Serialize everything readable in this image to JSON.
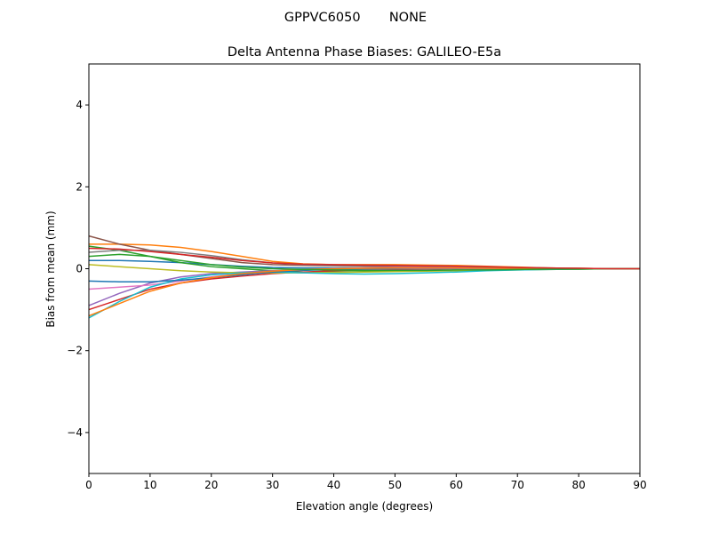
{
  "chart_data": {
    "type": "line",
    "suptitle": "GPPVC6050       NONE",
    "title": "Delta Antenna Phase Biases: GALILEO-E5a",
    "x_label": "Elevation angle (degrees)",
    "y_label": "Bias from mean (mm)",
    "xlim": [
      0,
      90
    ],
    "ylim": [
      -5,
      5
    ],
    "xticks": [
      0,
      10,
      20,
      30,
      40,
      50,
      60,
      70,
      80,
      90
    ],
    "yticks": [
      {
        "value": -4,
        "label": "−4"
      },
      {
        "value": -2,
        "label": "−2"
      },
      0,
      2,
      4
    ],
    "x": [
      0,
      5,
      10,
      15,
      20,
      25,
      30,
      35,
      40,
      45,
      50,
      55,
      60,
      65,
      70,
      75,
      80,
      85,
      90
    ],
    "series": [
      {
        "color": "#1f77b4",
        "values": [
          0.2,
          0.2,
          0.18,
          0.15,
          0.1,
          0.06,
          0.03,
          0.02,
          0.02,
          0.02,
          0.02,
          0.01,
          0.01,
          0.01,
          0.01,
          0,
          0,
          0,
          0
        ]
      },
      {
        "color": "#ff7f0e",
        "values": [
          0.6,
          0.6,
          0.58,
          0.52,
          0.42,
          0.3,
          0.18,
          0.12,
          0.1,
          0.1,
          0.1,
          0.09,
          0.08,
          0.06,
          0.04,
          0.02,
          0.01,
          0,
          0
        ]
      },
      {
        "color": "#2ca02c",
        "values": [
          0.55,
          0.45,
          0.3,
          0.15,
          0.05,
          0,
          -0.05,
          -0.08,
          -0.08,
          -0.07,
          -0.06,
          -0.05,
          -0.04,
          -0.03,
          -0.02,
          -0.01,
          0,
          0,
          0
        ]
      },
      {
        "color": "#d62728",
        "values": [
          -1.0,
          -0.75,
          -0.5,
          -0.35,
          -0.25,
          -0.18,
          -0.12,
          -0.08,
          -0.05,
          -0.03,
          -0.02,
          -0.01,
          0,
          0,
          0,
          0,
          0,
          0,
          0
        ]
      },
      {
        "color": "#9467bd",
        "values": [
          -0.9,
          -0.6,
          -0.35,
          -0.2,
          -0.12,
          -0.08,
          -0.05,
          -0.03,
          -0.02,
          -0.01,
          0,
          0,
          0,
          0,
          0,
          0,
          0,
          0,
          0
        ]
      },
      {
        "color": "#8c564b",
        "values": [
          0.8,
          0.6,
          0.45,
          0.35,
          0.25,
          0.15,
          0.1,
          0.08,
          0.07,
          0.06,
          0.05,
          0.05,
          0.04,
          0.03,
          0.02,
          0.01,
          0,
          0,
          0
        ]
      },
      {
        "color": "#e377c2",
        "values": [
          -0.5,
          -0.45,
          -0.4,
          -0.3,
          -0.2,
          -0.12,
          -0.06,
          -0.03,
          0,
          0.02,
          0.03,
          0.03,
          0.03,
          0.02,
          0.01,
          0.01,
          0,
          0,
          0
        ]
      },
      {
        "color": "#7f7f7f",
        "values": [
          0.4,
          0.45,
          0.45,
          0.4,
          0.32,
          0.22,
          0.14,
          0.1,
          0.08,
          0.08,
          0.07,
          0.07,
          0.06,
          0.05,
          0.03,
          0.02,
          0.01,
          0,
          0
        ]
      },
      {
        "color": "#bcbd22",
        "values": [
          0.1,
          0.05,
          0,
          -0.05,
          -0.08,
          -0.1,
          -0.1,
          -0.1,
          -0.09,
          -0.08,
          -0.07,
          -0.06,
          -0.05,
          -0.04,
          -0.03,
          -0.02,
          -0.01,
          0,
          0
        ]
      },
      {
        "color": "#17becf",
        "values": [
          -1.2,
          -0.8,
          -0.45,
          -0.25,
          -0.15,
          -0.1,
          -0.08,
          -0.1,
          -0.12,
          -0.13,
          -0.12,
          -0.1,
          -0.08,
          -0.05,
          -0.03,
          -0.02,
          -0.01,
          0,
          0
        ]
      },
      {
        "color": "#1f77b4",
        "values": [
          -0.3,
          -0.32,
          -0.32,
          -0.28,
          -0.22,
          -0.15,
          -0.08,
          -0.04,
          -0.02,
          0,
          0.01,
          0.02,
          0.02,
          0.02,
          0.01,
          0.01,
          0,
          0,
          0
        ]
      },
      {
        "color": "#ff7f0e",
        "values": [
          -1.15,
          -0.85,
          -0.55,
          -0.35,
          -0.22,
          -0.12,
          -0.06,
          -0.02,
          0,
          0.01,
          0.02,
          0.02,
          0.02,
          0.01,
          0.01,
          0,
          0,
          0,
          0
        ]
      },
      {
        "color": "#2ca02c",
        "values": [
          0.3,
          0.35,
          0.3,
          0.2,
          0.1,
          0.04,
          0,
          -0.02,
          -0.03,
          -0.04,
          -0.04,
          -0.04,
          -0.03,
          -0.03,
          -0.02,
          -0.01,
          -0.01,
          0,
          0
        ]
      },
      {
        "color": "#d62728",
        "values": [
          0.5,
          0.48,
          0.42,
          0.35,
          0.28,
          0.2,
          0.14,
          0.11,
          0.1,
          0.09,
          0.08,
          0.07,
          0.06,
          0.05,
          0.03,
          0.02,
          0.01,
          0,
          0
        ]
      }
    ]
  }
}
